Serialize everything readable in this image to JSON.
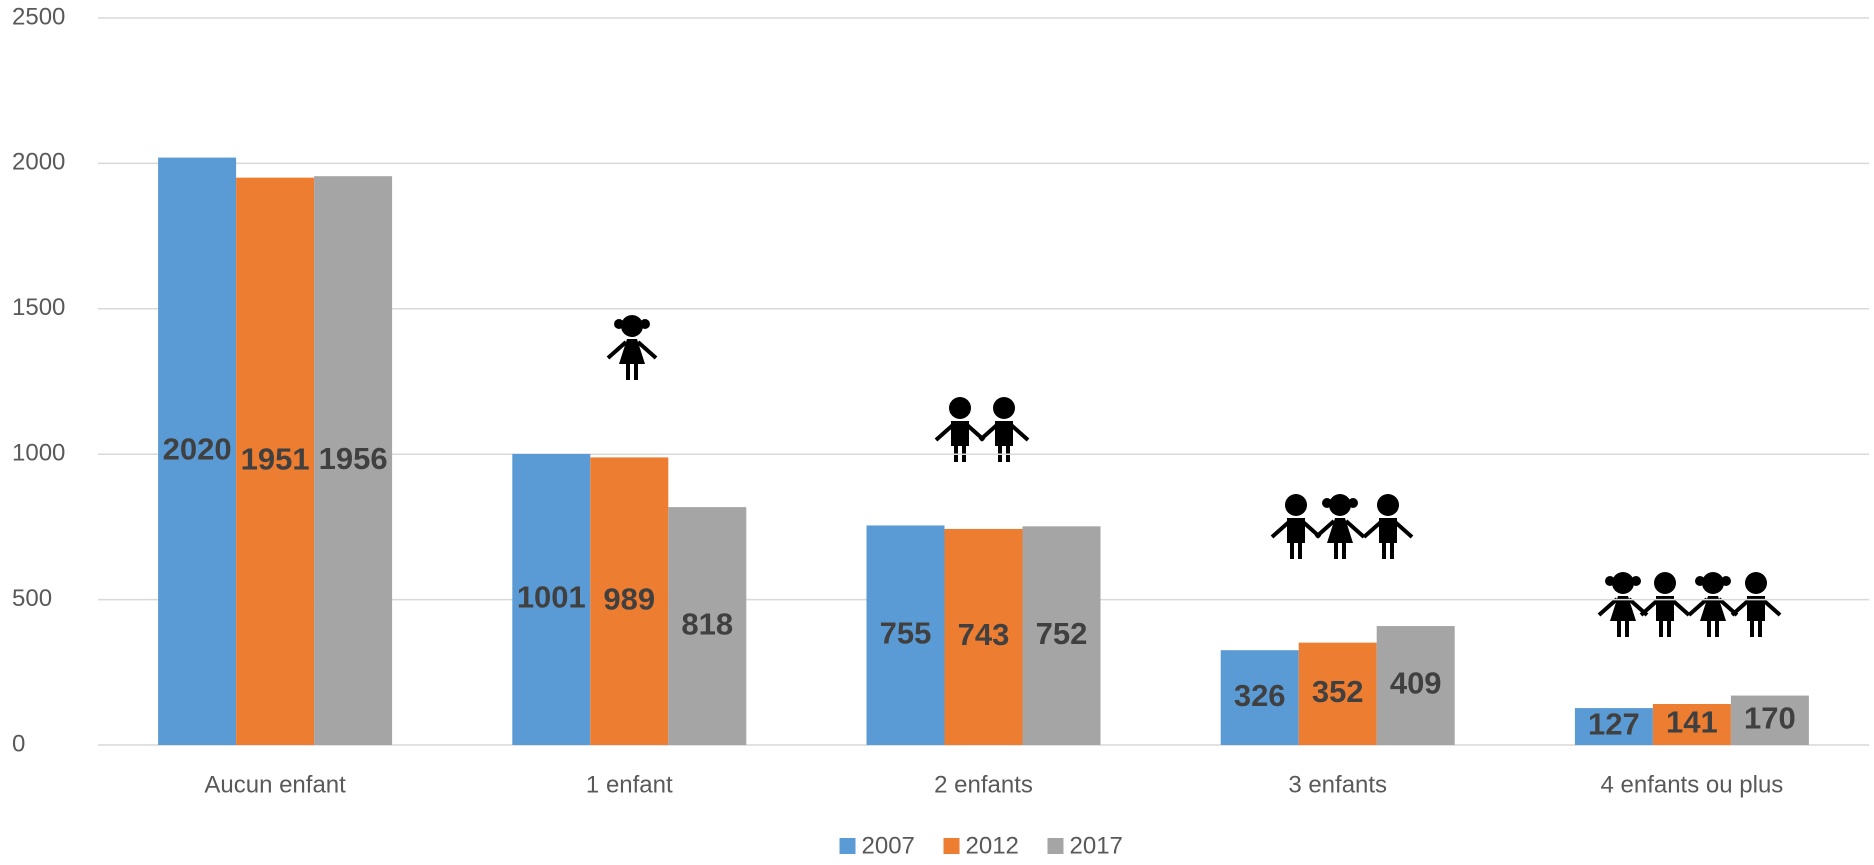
{
  "chart_data": {
    "type": "bar",
    "categories": [
      "Aucun enfant",
      "1 enfant",
      "2 enfants",
      "3 enfants",
      "4 enfants ou plus"
    ],
    "series": [
      {
        "name": "2007",
        "color": "#5b9bd5",
        "values": [
          2020,
          1001,
          755,
          326,
          127
        ]
      },
      {
        "name": "2012",
        "color": "#ed7d31",
        "values": [
          1951,
          989,
          743,
          352,
          141
        ]
      },
      {
        "name": "2017",
        "color": "#a5a5a5",
        "values": [
          1956,
          818,
          752,
          409,
          170
        ]
      }
    ],
    "ylim": [
      0,
      2500
    ],
    "yticks": [
      0,
      500,
      1000,
      1500,
      2000,
      2500
    ],
    "grid": true,
    "legend": "bottom"
  }
}
